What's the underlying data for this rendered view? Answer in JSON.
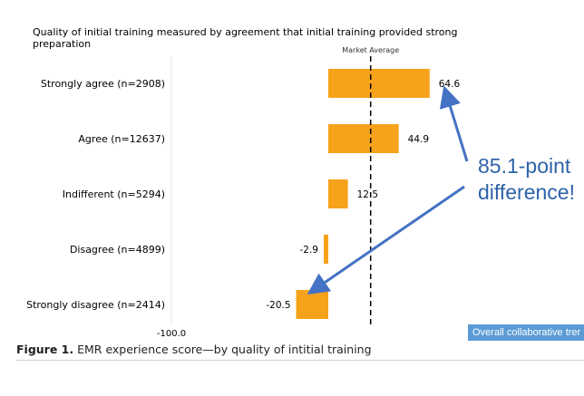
{
  "chart_data": {
    "type": "bar",
    "orientation": "horizontal",
    "title": "Quality of initial training measured by agreement that initial training provided strong preparation",
    "categories": [
      "Strongly agree (n=2908)",
      "Agree (n=12637)",
      "Indifferent (n=5294)",
      "Disagree (n=4899)",
      "Strongly disagree (n=2414)"
    ],
    "values": [
      64.6,
      44.9,
      12.5,
      -2.9,
      -20.5
    ],
    "value_labels": [
      "64.6",
      "44.9",
      "12.5",
      "-2.9",
      "-20.5"
    ],
    "x_min_label": "-100.0",
    "xlim": [
      -100,
      100
    ],
    "reference_line": {
      "label": "Market Average",
      "value": 27
    },
    "bar_color": "#f7a21b",
    "grid": false
  },
  "annotation": {
    "line1": "85.1-point",
    "line2": "difference!",
    "color": "#2e63a8"
  },
  "legend_label": "Overall collaborative trer",
  "figure_caption": {
    "label": "Figure 1.",
    "text": " EMR experience score—by quality of intitial training"
  }
}
